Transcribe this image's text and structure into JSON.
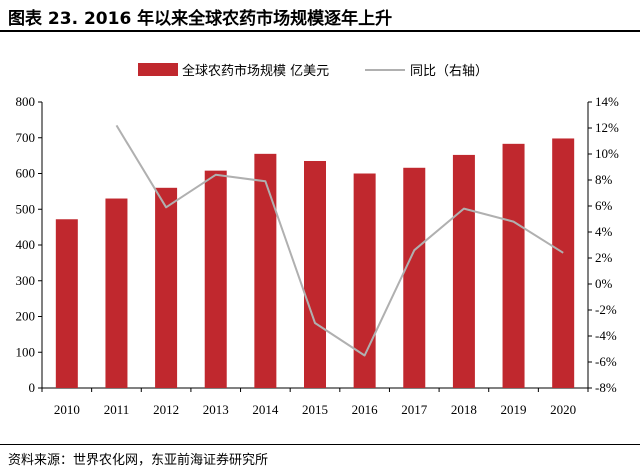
{
  "header": {
    "title": "图表 23. 2016 年以来全球农药市场规模逐年上升"
  },
  "source_note": "资料来源：世界农化网，东亚前海证券研究所",
  "chart_data": {
    "type": "bar",
    "categories": [
      "2010",
      "2011",
      "2012",
      "2013",
      "2014",
      "2015",
      "2016",
      "2017",
      "2018",
      "2019",
      "2020"
    ],
    "series": [
      {
        "name": "全球农药市场规模 亿美元",
        "type": "bar",
        "axis": "left",
        "color": "#c0282e",
        "values": [
          472,
          530,
          560,
          608,
          655,
          635,
          600,
          616,
          652,
          683,
          698
        ]
      },
      {
        "name": "同比（右轴）",
        "type": "line",
        "axis": "right",
        "color": "#b0b0b0",
        "values": [
          null,
          12.2,
          5.9,
          8.4,
          7.9,
          -3.0,
          -5.5,
          2.6,
          5.8,
          4.8,
          2.4
        ]
      }
    ],
    "ylim": [
      0,
      800
    ],
    "yticks": [
      "0",
      "100",
      "200",
      "300",
      "400",
      "500",
      "600",
      "700",
      "800"
    ],
    "y2lim": [
      -8,
      14
    ],
    "y2ticks": [
      "-8%",
      "-6%",
      "-4%",
      "-2%",
      "0%",
      "2%",
      "4%",
      "6%",
      "8%",
      "10%",
      "12%",
      "14%"
    ],
    "legend": "top-center",
    "grid": false
  }
}
